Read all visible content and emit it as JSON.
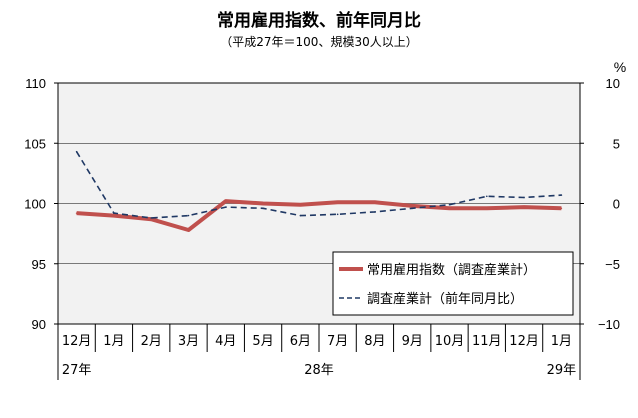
{
  "chart_data": {
    "type": "line",
    "title": "常用雇用指数、前年同月比",
    "subtitle": "（平成27年＝100、規模30人以上）",
    "right_axis_unit": "%",
    "categories": [
      "12月",
      "1月",
      "2月",
      "3月",
      "4月",
      "5月",
      "6月",
      "7月",
      "8月",
      "9月",
      "10月",
      "11月",
      "12月",
      "1月"
    ],
    "year_labels": [
      {
        "text": "27年",
        "from": 0,
        "to": 0
      },
      {
        "text": "28年",
        "from": 1,
        "to": 12
      },
      {
        "text": "29年",
        "from": 13,
        "to": 13
      }
    ],
    "y_left": {
      "min": 90,
      "max": 110,
      "ticks": [
        "90",
        "95",
        "100",
        "105",
        "110"
      ]
    },
    "y_right": {
      "min": -10,
      "max": 10,
      "ticks": [
        "−10",
        "−5",
        "0",
        "5",
        "10"
      ]
    },
    "grid": true,
    "legend_position": "bottom-right",
    "series": [
      {
        "name": "常用雇用指数（調査産業計）",
        "axis": "left",
        "style": "solid",
        "color": "#c0504d",
        "values": [
          99.2,
          99.0,
          98.7,
          97.8,
          100.2,
          100.0,
          99.9,
          100.1,
          100.1,
          99.8,
          99.6,
          99.6,
          99.7,
          99.6
        ]
      },
      {
        "name": "調査産業計（前年同月比）",
        "axis": "right",
        "style": "dashed",
        "color": "#1f3864",
        "values": [
          4.3,
          -0.8,
          -1.2,
          -1.0,
          -0.3,
          -0.4,
          -1.0,
          -0.9,
          -0.7,
          -0.4,
          -0.1,
          0.6,
          0.5,
          0.7
        ]
      }
    ]
  }
}
